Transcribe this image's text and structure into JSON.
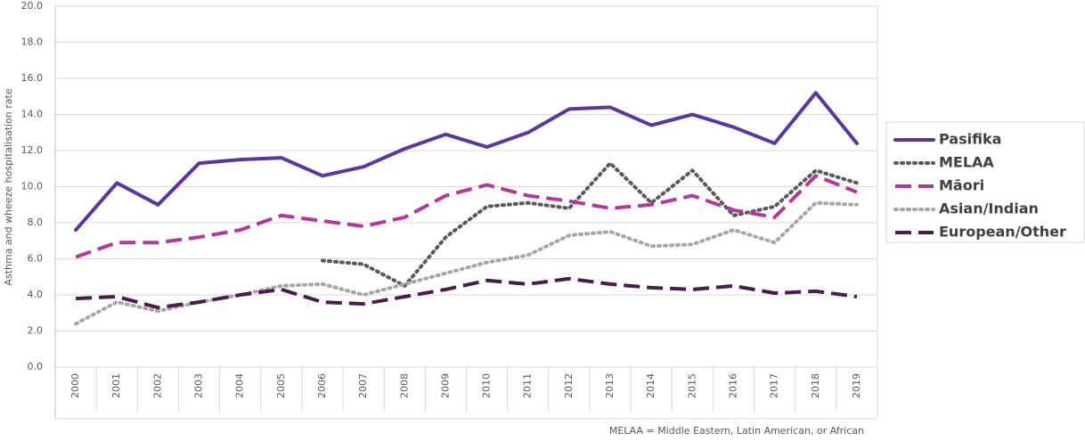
{
  "chart_data": {
    "type": "line",
    "y_label": "Asthma and wheeze hospitalisation rate",
    "note": "MELAA = Middle Eastern, Latin American, or African",
    "categories": [
      "2000",
      "2001",
      "2002",
      "2003",
      "2004",
      "2005",
      "2006",
      "2007",
      "2008",
      "2009",
      "2010",
      "2011",
      "2012",
      "2013",
      "2014",
      "2015",
      "2016",
      "2017",
      "2018",
      "2019"
    ],
    "series": [
      {
        "name": "Pasifika",
        "color": "#5b36a0",
        "style": "solid",
        "values": [
          7.6,
          10.2,
          9.0,
          11.3,
          11.5,
          11.6,
          10.6,
          11.1,
          12.1,
          12.9,
          12.2,
          13.0,
          14.3,
          14.4,
          13.4,
          14.0,
          13.3,
          12.4,
          15.2,
          12.4
        ]
      },
      {
        "name": "MELAA",
        "color": "#595959",
        "style": "dotted",
        "values": [
          null,
          null,
          null,
          null,
          null,
          null,
          5.9,
          5.7,
          4.5,
          7.2,
          8.9,
          9.1,
          8.8,
          11.3,
          9.1,
          10.9,
          8.4,
          8.9,
          10.9,
          10.2
        ]
      },
      {
        "name": "Māori",
        "color": "#b4389c",
        "style": "dashed",
        "values": [
          6.1,
          6.9,
          6.9,
          7.2,
          7.6,
          8.4,
          8.1,
          7.8,
          8.3,
          9.5,
          10.1,
          9.5,
          9.2,
          8.8,
          9.0,
          9.5,
          8.7,
          8.3,
          10.6,
          9.7
        ]
      },
      {
        "name": "Asian/Indian",
        "color": "#a6a6a6",
        "style": "dotted",
        "values": [
          2.4,
          3.6,
          3.1,
          3.6,
          4.0,
          4.5,
          4.6,
          4.0,
          4.6,
          5.2,
          5.8,
          6.2,
          7.3,
          7.5,
          6.7,
          6.8,
          7.6,
          6.9,
          9.1,
          9.0
        ]
      },
      {
        "name": "European/Other",
        "color": "#4a1c4e",
        "style": "dashed",
        "values": [
          3.8,
          3.9,
          3.3,
          3.6,
          4.0,
          4.3,
          3.6,
          3.5,
          3.9,
          4.3,
          4.8,
          4.6,
          4.9,
          4.6,
          4.4,
          4.3,
          4.5,
          4.1,
          4.2,
          3.9
        ]
      }
    ],
    "ylim": [
      0,
      20
    ],
    "yticks": [
      {
        "value": 0,
        "label": "0.0"
      },
      {
        "value": 2,
        "label": "2.0"
      },
      {
        "value": 4,
        "label": "4.0"
      },
      {
        "value": 6,
        "label": "6.0"
      },
      {
        "value": 8,
        "label": "8.0"
      },
      {
        "value": 10,
        "label": "10.0"
      },
      {
        "value": 12,
        "label": "12.0"
      },
      {
        "value": 14,
        "label": "14.0"
      },
      {
        "value": 16,
        "label": "16.0"
      },
      {
        "value": 18,
        "label": "18.0"
      },
      {
        "value": 20,
        "label": "20.0"
      }
    ],
    "grid": true,
    "legend": "right"
  }
}
